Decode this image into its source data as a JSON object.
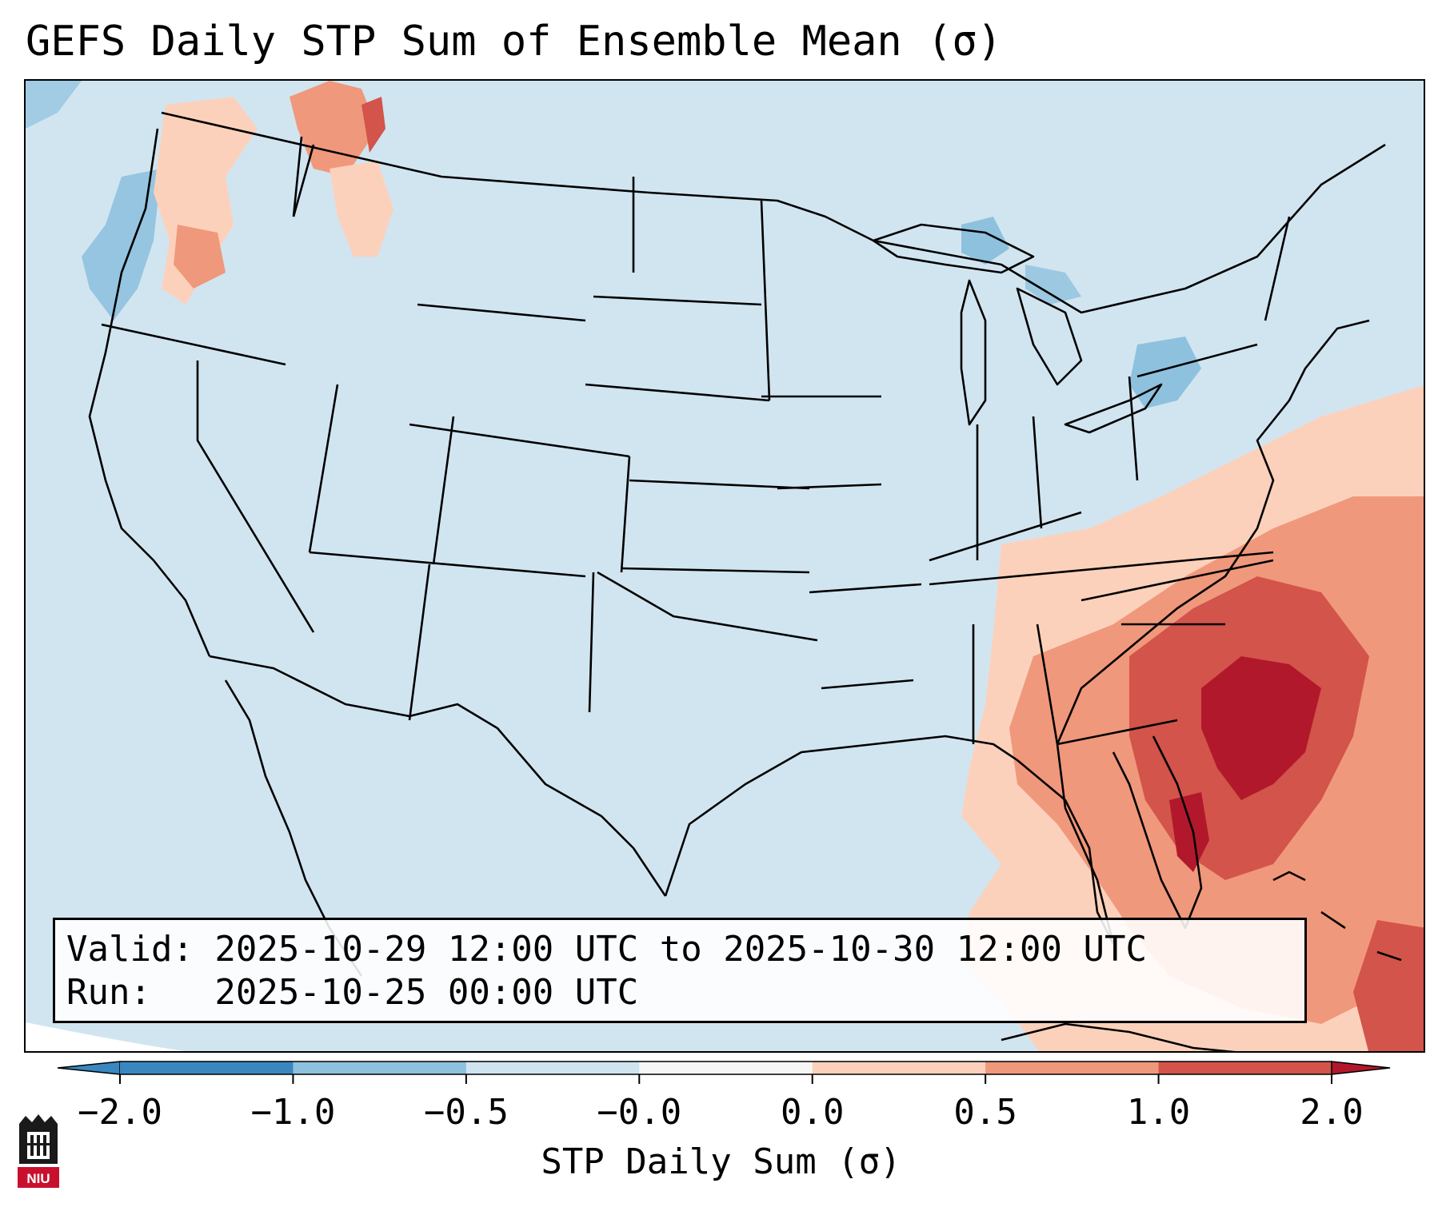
{
  "title": "GEFS Daily STP Sum of Ensemble Mean (σ)",
  "info": {
    "valid_line": "Valid: 2025-10-29 12:00 UTC to 2025-10-30 12:00 UTC",
    "run_line": "Run:   2025-10-25 00:00 UTC"
  },
  "colorbar": {
    "label": "STP Daily Sum (σ)",
    "ticks": [
      "−2.0",
      "−1.0",
      "−0.5",
      "−0.0",
      "0.0",
      "0.5",
      "1.0",
      "2.0"
    ],
    "bins": [
      {
        "color": "#3a87c0"
      },
      {
        "color": "#8ec1de"
      },
      {
        "color": "#d0e4f0"
      },
      {
        "color": "#f6f6f6"
      },
      {
        "color": "#fcd1bc"
      },
      {
        "color": "#f0987b"
      },
      {
        "color": "#d2544a"
      }
    ],
    "under_color": "#3a87c0",
    "over_color": "#b2182b"
  },
  "map": {
    "background_color": "#d1e5f0",
    "state_line_color": "#000000",
    "features": [
      {
        "region": "Southeast / Florida / Western Atlantic",
        "level": "over 2.0"
      },
      {
        "region": "Georgia / South Carolina coast",
        "level": "1.0 to 2.0"
      },
      {
        "region": "Pacific Northwest / Idaho",
        "level": "0.0 to 1.0"
      },
      {
        "region": "Offshore Washington",
        "level": "-1.0 to -0.5"
      },
      {
        "region": "Upper Great Lakes / Pennsylvania",
        "level": "-1.0 to -0.5"
      }
    ]
  },
  "logo": {
    "text": "NIU"
  }
}
